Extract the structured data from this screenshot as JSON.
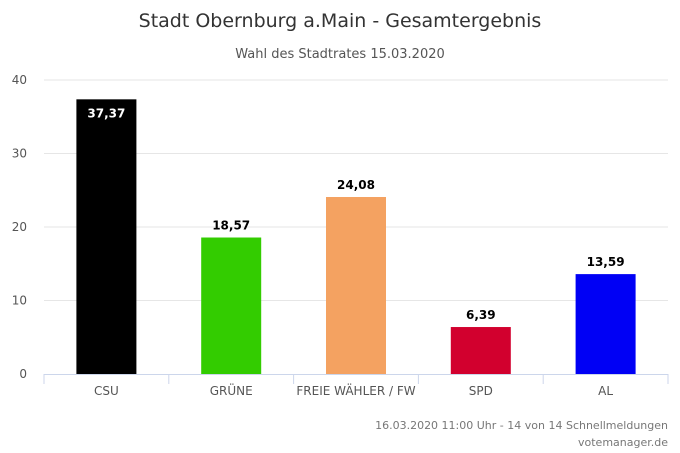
{
  "chart_data": {
    "type": "bar",
    "title": "Stadt Obernburg a.Main - Gesamtergebnis",
    "subtitle": "Wahl des Stadtrates 15.03.2020",
    "categories": [
      "CSU",
      "GRÜNE",
      "FREIE WÄHLER / FW",
      "SPD",
      "AL"
    ],
    "values": [
      37.37,
      18.57,
      24.08,
      6.39,
      13.59
    ],
    "value_labels": [
      "37,37",
      "18,57",
      "24,08",
      "6,39",
      "13,59"
    ],
    "colors": [
      "#000000",
      "#33cc00",
      "#f4a261",
      "#d2002e",
      "#0000f5"
    ],
    "label_colors": [
      "#ffffff",
      "#000000",
      "#000000",
      "#000000",
      "#000000"
    ],
    "label_inside": [
      true,
      false,
      false,
      false,
      false
    ],
    "ylim": [
      0,
      40
    ],
    "yticks": [
      0,
      10,
      20,
      30,
      40
    ],
    "grid": true
  },
  "footer": {
    "timestamp": "16.03.2020 11:00 Uhr - 14 von 14 Schnellmeldungen",
    "source": "votemanager.de"
  }
}
